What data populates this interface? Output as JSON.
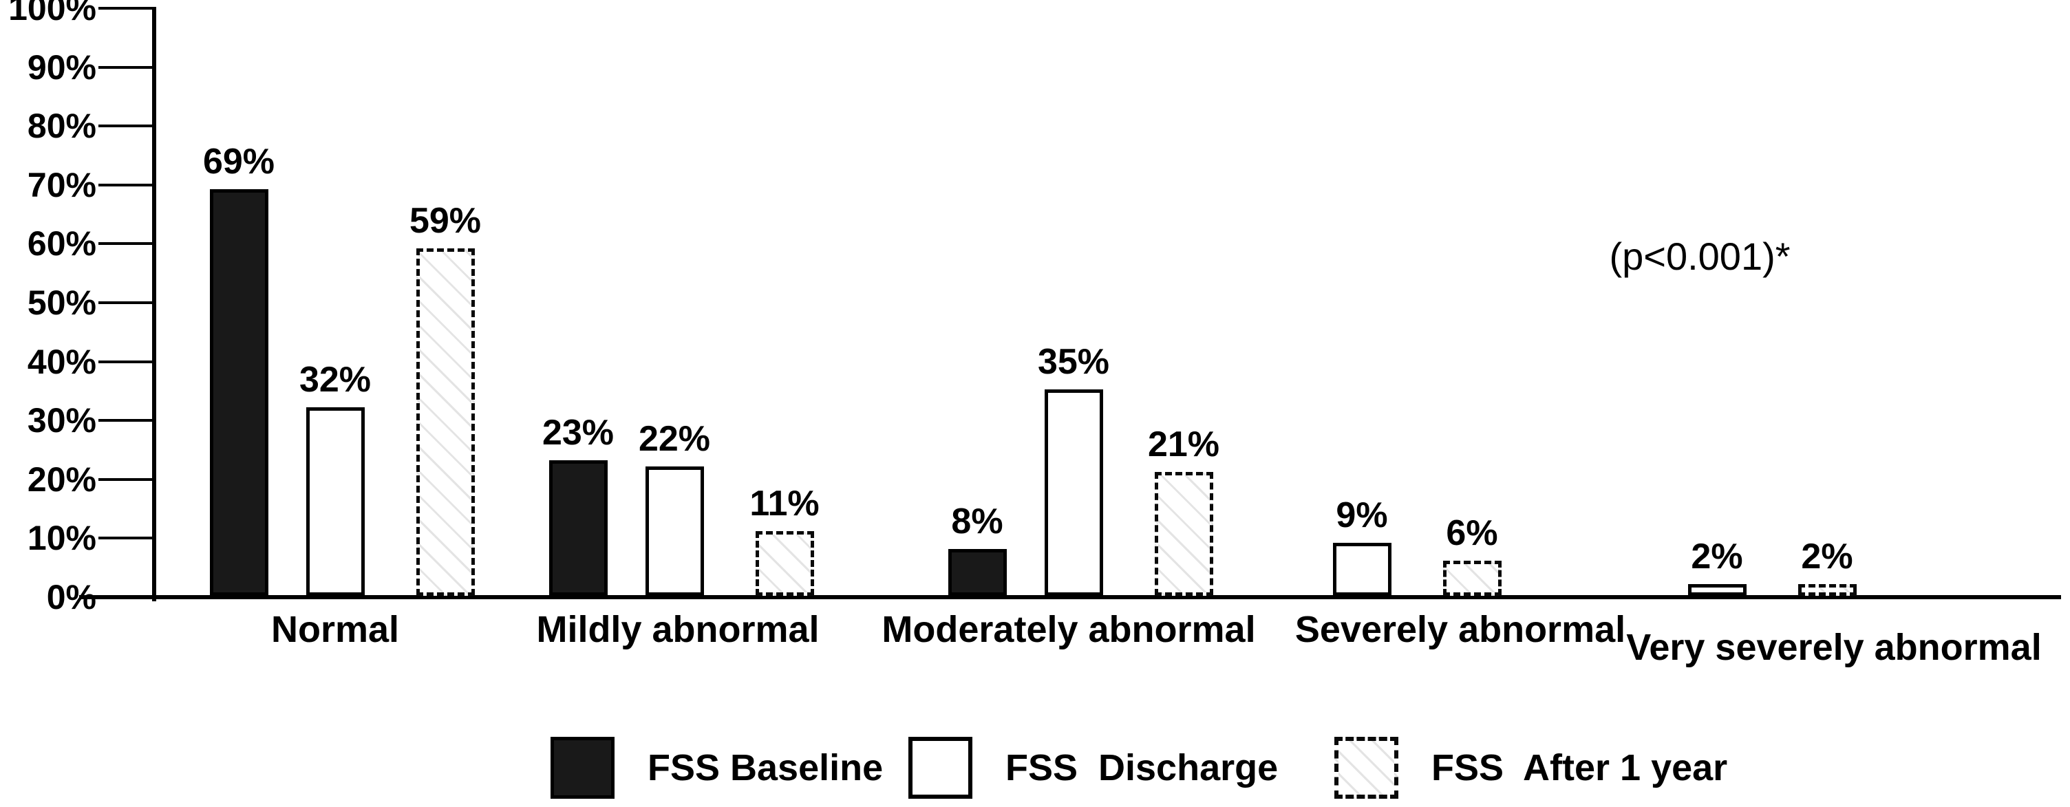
{
  "chart_data": {
    "type": "bar",
    "title": "",
    "xlabel": "",
    "ylabel": "",
    "categories": [
      "Normal",
      "Mildly abnormal",
      "Moderately abnormal",
      "Severely abnormal",
      "Very severely abnormal"
    ],
    "series": [
      {
        "name": "FSS Baseline",
        "swatch_style": "solid-black",
        "values": [
          69,
          23,
          8,
          null,
          null
        ]
      },
      {
        "name": "FSS  Discharge",
        "swatch_style": "white-outline",
        "values": [
          32,
          22,
          35,
          9,
          2
        ]
      },
      {
        "name": "FSS  After 1 year",
        "swatch_style": "dashed-outline-hatch",
        "values": [
          59,
          11,
          21,
          6,
          2
        ]
      }
    ],
    "value_suffix": "%",
    "ylim": [
      0,
      100
    ],
    "y_tick_labels": [
      "0%",
      "10%",
      "20%",
      "30%",
      "40%",
      "50%",
      "60%",
      "70%",
      "80%",
      "90%",
      "100%"
    ],
    "grid": false,
    "legend_position": "bottom-center",
    "annotation": "(p<0.001)*",
    "colors": {
      "bar_fill_baseline": "#191919",
      "bar_fill_discharge": "#ffffff",
      "bar_fill_after_1_year": "#ffffff",
      "outline": "#000000",
      "hatch_line": "#e4e4e4",
      "text": "#000000",
      "background": "#ffffff"
    }
  }
}
